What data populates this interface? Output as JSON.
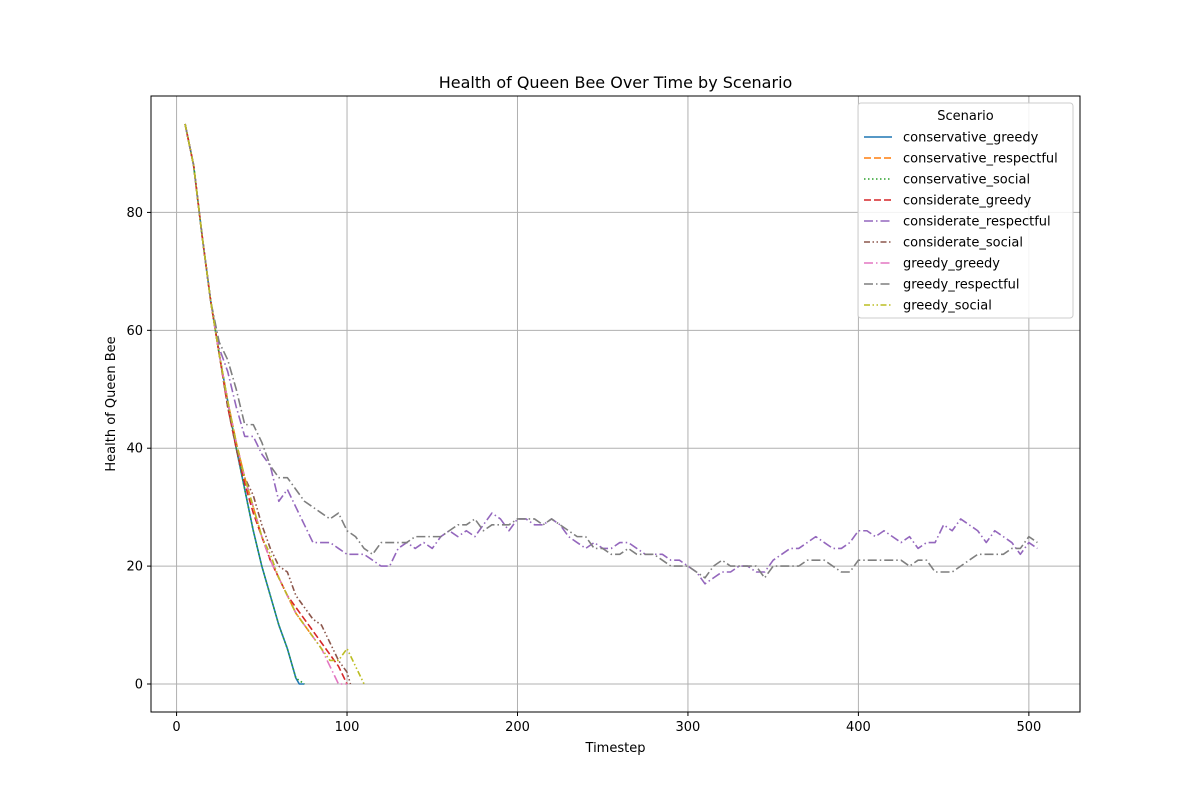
{
  "chart_data": {
    "type": "line",
    "title": "Health of Queen Bee Over Time by Scenario",
    "xlabel": "Timestep",
    "ylabel": "Health of Queen Bee",
    "xlim": [
      -15,
      530
    ],
    "ylim": [
      -4.75,
      99.75
    ],
    "xticks": [
      0,
      100,
      200,
      300,
      400,
      500
    ],
    "yticks": [
      0,
      20,
      40,
      60,
      80
    ],
    "grid": true,
    "legend": {
      "title": "Scenario",
      "position": "top-right"
    },
    "series": [
      {
        "name": "conservative_greedy",
        "color": "#1f77b4",
        "dash": "solid",
        "x": [
          5,
          10,
          15,
          20,
          25,
          30,
          35,
          40,
          45,
          50,
          55,
          60,
          65,
          70,
          72,
          75
        ],
        "y": [
          95,
          88,
          76,
          65,
          56,
          48,
          40,
          33,
          26,
          20,
          15,
          10,
          6,
          1,
          0,
          0
        ]
      },
      {
        "name": "conservative_respectful",
        "color": "#ff7f0e",
        "dash": "dashed",
        "x": [
          5,
          10,
          15,
          20,
          25,
          30,
          35,
          40,
          45,
          50,
          55,
          60,
          65,
          70,
          75,
          80
        ],
        "y": [
          95,
          88,
          76,
          65,
          56,
          48,
          41,
          35,
          30,
          25,
          21,
          18,
          15,
          12,
          10,
          8
        ]
      },
      {
        "name": "conservative_social",
        "color": "#2ca02c",
        "dash": "dotted",
        "x": [
          5,
          10,
          15,
          20,
          25,
          30,
          35,
          40,
          45,
          50,
          55,
          60,
          65,
          70,
          75
        ],
        "y": [
          95,
          88,
          76,
          65,
          56,
          48,
          40,
          33,
          26,
          20,
          15,
          10,
          6,
          1,
          0
        ]
      },
      {
        "name": "considerate_greedy",
        "color": "#d62728",
        "dash": "dashed",
        "x": [
          5,
          10,
          15,
          20,
          25,
          30,
          35,
          40,
          45,
          50,
          55,
          60,
          65,
          70,
          75,
          80,
          85,
          90,
          95,
          100
        ],
        "y": [
          95,
          88,
          76,
          65,
          56,
          47,
          40,
          34,
          29,
          25,
          21,
          18,
          15,
          13,
          11,
          9,
          7,
          5,
          3,
          0
        ]
      },
      {
        "name": "considerate_respectful",
        "color": "#9467bd",
        "dash": "dashdot",
        "x": [
          5,
          10,
          15,
          20,
          25,
          30,
          35,
          40,
          45,
          50,
          55,
          60,
          65,
          70,
          75,
          80,
          85,
          90,
          95,
          100,
          105,
          110,
          115,
          120,
          125,
          130,
          135,
          140,
          145,
          150,
          155,
          160,
          165,
          170,
          175,
          180,
          185,
          190,
          195,
          200,
          205,
          210,
          215,
          220,
          225,
          230,
          235,
          240,
          245,
          250,
          255,
          260,
          265,
          270,
          275,
          280,
          285,
          290,
          295,
          300,
          305,
          310,
          315,
          320,
          325,
          330,
          335,
          340,
          345,
          350,
          355,
          360,
          365,
          370,
          375,
          380,
          385,
          390,
          395,
          400,
          405,
          410,
          415,
          420,
          425,
          430,
          435,
          440,
          445,
          450,
          455,
          460,
          465,
          470,
          475,
          480,
          485,
          490,
          495,
          500,
          505
        ],
        "y": [
          95,
          88,
          76,
          65,
          57,
          53,
          47,
          42,
          42,
          39,
          37,
          31,
          33,
          30,
          27,
          24,
          24,
          24,
          23,
          22,
          22,
          22,
          21,
          20,
          20,
          23,
          24,
          23,
          24,
          23,
          25,
          26,
          25,
          26,
          25,
          27,
          29,
          28,
          26,
          28,
          28,
          27,
          27,
          28,
          27,
          25,
          24,
          23,
          24,
          23,
          23,
          24,
          24,
          23,
          22,
          22,
          22,
          21,
          21,
          20,
          19,
          17,
          18,
          19,
          19,
          20,
          20,
          19,
          19,
          21,
          22,
          23,
          23,
          24,
          25,
          24,
          23,
          23,
          24,
          26,
          26,
          25,
          26,
          25,
          24,
          25,
          23,
          24,
          24,
          27,
          26,
          28,
          27,
          26,
          24,
          26,
          25,
          24,
          22,
          24,
          23
        ]
      },
      {
        "name": "considerate_social",
        "color": "#8c564b",
        "dash": "dashdotdot",
        "x": [
          5,
          10,
          15,
          20,
          25,
          30,
          35,
          40,
          45,
          50,
          55,
          60,
          65,
          70,
          75,
          80,
          85,
          90,
          95,
          100,
          102
        ],
        "y": [
          95,
          88,
          76,
          65,
          56,
          47,
          40,
          35,
          32,
          27,
          23,
          20,
          19,
          15,
          13,
          11,
          10,
          7,
          4,
          2,
          0
        ]
      },
      {
        "name": "greedy_greedy",
        "color": "#e377c2",
        "dash": "dashdot",
        "x": [
          5,
          10,
          15,
          20,
          25,
          30,
          35,
          40,
          45,
          50,
          55,
          60,
          65,
          70,
          75,
          80,
          85,
          90,
          95,
          100
        ],
        "y": [
          95,
          88,
          76,
          65,
          56,
          48,
          41,
          35,
          30,
          25,
          21,
          18,
          15,
          12,
          10,
          8,
          6,
          3,
          0,
          0
        ]
      },
      {
        "name": "greedy_respectful",
        "color": "#7f7f7f",
        "dash": "dashdot",
        "x": [
          5,
          10,
          15,
          20,
          25,
          30,
          35,
          40,
          45,
          50,
          55,
          60,
          65,
          70,
          75,
          80,
          85,
          90,
          95,
          100,
          105,
          110,
          115,
          120,
          125,
          130,
          135,
          140,
          145,
          150,
          155,
          160,
          165,
          170,
          175,
          180,
          185,
          190,
          195,
          200,
          205,
          210,
          215,
          220,
          225,
          230,
          235,
          240,
          245,
          250,
          255,
          260,
          265,
          270,
          275,
          280,
          285,
          290,
          295,
          300,
          305,
          310,
          315,
          320,
          325,
          330,
          335,
          340,
          345,
          350,
          355,
          360,
          365,
          370,
          375,
          380,
          385,
          390,
          395,
          400,
          405,
          410,
          415,
          420,
          425,
          430,
          435,
          440,
          445,
          450,
          455,
          460,
          465,
          470,
          475,
          480,
          485,
          490,
          495,
          500,
          505
        ],
        "y": [
          95,
          88,
          76,
          65,
          58,
          55,
          50,
          44,
          44,
          41,
          37,
          35,
          35,
          33,
          31,
          30,
          29,
          28,
          29,
          26,
          25,
          23,
          22,
          24,
          24,
          24,
          24,
          25,
          25,
          25,
          25,
          26,
          27,
          27,
          28,
          26,
          27,
          27,
          27,
          28,
          28,
          28,
          27,
          28,
          27,
          26,
          25,
          25,
          23,
          23,
          22,
          22,
          23,
          22,
          22,
          22,
          21,
          20,
          20,
          20,
          19,
          18,
          20,
          21,
          20,
          20,
          20,
          20,
          18,
          20,
          20,
          20,
          20,
          21,
          21,
          21,
          20,
          19,
          19,
          21,
          21,
          21,
          21,
          21,
          21,
          20,
          21,
          21,
          19,
          19,
          19,
          20,
          21,
          22,
          22,
          22,
          22,
          23,
          23,
          25,
          24
        ]
      },
      {
        "name": "greedy_social",
        "color": "#bcbd22",
        "dash": "dashdotdot",
        "x": [
          5,
          10,
          15,
          20,
          25,
          30,
          35,
          40,
          45,
          50,
          55,
          60,
          65,
          70,
          75,
          80,
          85,
          90,
          95,
          100,
          105,
          110
        ],
        "y": [
          95,
          88,
          76,
          65,
          56,
          48,
          41,
          35,
          30,
          25,
          22,
          18,
          15,
          12,
          10,
          8,
          6,
          4,
          4,
          6,
          3,
          0
        ]
      }
    ]
  }
}
